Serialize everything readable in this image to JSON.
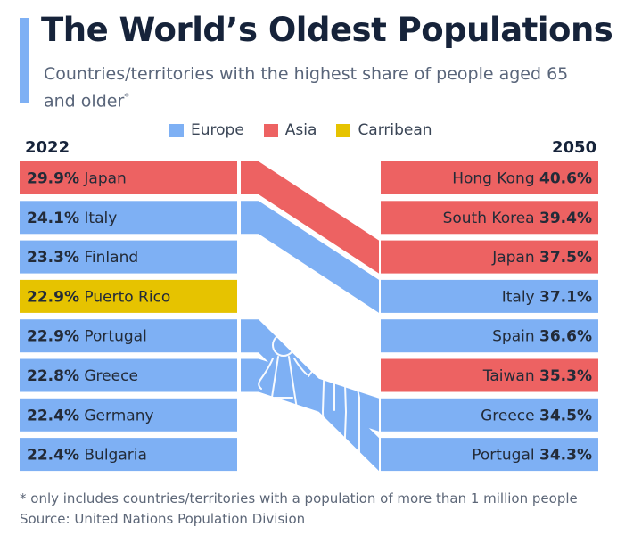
{
  "header": {
    "title": "The World’s Oldest Populations",
    "subtitle": "Countries/territories with the highest share of people aged 65 and older",
    "subtitle_mark": "*"
  },
  "legend": [
    {
      "label": "Europe",
      "color": "#7eb0f4"
    },
    {
      "label": "Asia",
      "color": "#ed6262"
    },
    {
      "label": "Carribean",
      "color": "#e6c300"
    }
  ],
  "footer": {
    "note": "* only includes countries/territories with a population of more than 1 million people",
    "source": "Source: United Nations Population Division"
  },
  "chart_data": {
    "type": "slope-ranking",
    "unit": "%",
    "left_year": "2022",
    "right_year": "2050",
    "left": [
      {
        "country": "Japan",
        "value": 29.9,
        "region": "Asia"
      },
      {
        "country": "Italy",
        "value": 24.1,
        "region": "Europe"
      },
      {
        "country": "Finland",
        "value": 23.3,
        "region": "Europe"
      },
      {
        "country": "Puerto Rico",
        "value": 22.9,
        "region": "Carribean"
      },
      {
        "country": "Portugal",
        "value": 22.9,
        "region": "Europe"
      },
      {
        "country": "Greece",
        "value": 22.8,
        "region": "Europe"
      },
      {
        "country": "Germany",
        "value": 22.4,
        "region": "Europe"
      },
      {
        "country": "Bulgaria",
        "value": 22.4,
        "region": "Europe"
      }
    ],
    "right": [
      {
        "country": "Hong Kong",
        "value": 40.6,
        "region": "Asia"
      },
      {
        "country": "South Korea",
        "value": 39.4,
        "region": "Asia"
      },
      {
        "country": "Japan",
        "value": 37.5,
        "region": "Asia"
      },
      {
        "country": "Italy",
        "value": 37.1,
        "region": "Europe"
      },
      {
        "country": "Spain",
        "value": 36.6,
        "region": "Europe"
      },
      {
        "country": "Taiwan",
        "value": 35.3,
        "region": "Asia"
      },
      {
        "country": "Greece",
        "value": 34.5,
        "region": "Europe"
      },
      {
        "country": "Portugal",
        "value": 34.3,
        "region": "Europe"
      }
    ]
  }
}
